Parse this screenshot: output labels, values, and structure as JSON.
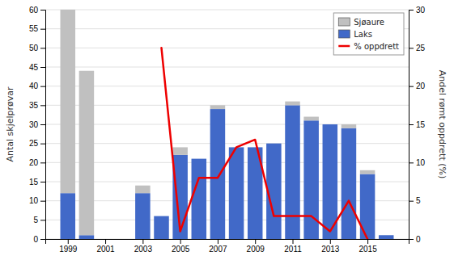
{
  "chart_data": {
    "type": "bar",
    "stacked": true,
    "x": [
      1999,
      2000,
      2003,
      2004,
      2005,
      2006,
      2007,
      2008,
      2009,
      2010,
      2011,
      2012,
      2013,
      2014,
      2015,
      2016
    ],
    "series": [
      {
        "name": "Laks",
        "type": "bar",
        "color": "#4169C8",
        "values": [
          12,
          1,
          12,
          6,
          22,
          21,
          34,
          24,
          24,
          25,
          35,
          31,
          30,
          29,
          17,
          1
        ]
      },
      {
        "name": "Sjøaure",
        "type": "bar",
        "color": "#C0C0C0",
        "values": [
          48,
          43,
          2,
          0,
          2,
          0,
          1,
          0,
          0,
          0,
          1,
          1,
          0,
          1,
          1,
          0
        ]
      },
      {
        "name": "% oppdrett",
        "type": "line",
        "axis": "y2",
        "color": "#EE0000",
        "values": [
          null,
          null,
          null,
          25,
          1,
          8,
          8,
          12,
          13,
          3,
          3,
          3,
          1,
          5,
          0,
          null
        ]
      }
    ],
    "y_label": "Antal skjelprøvar",
    "y2_label": "Andel rømt oppdrett (%)",
    "xlim": [
      1997.8,
      2017.2
    ],
    "xticks": [
      1999,
      2001,
      2003,
      2005,
      2007,
      2009,
      2011,
      2013,
      2015
    ],
    "ylim": [
      0,
      60
    ],
    "yticks": [
      0,
      5,
      10,
      15,
      20,
      25,
      30,
      35,
      40,
      45,
      50,
      55,
      60
    ],
    "y2lim": [
      0,
      30
    ],
    "y2ticks": [
      0,
      5,
      10,
      15,
      20,
      25,
      30
    ],
    "grid": true,
    "legend": "upper right"
  }
}
